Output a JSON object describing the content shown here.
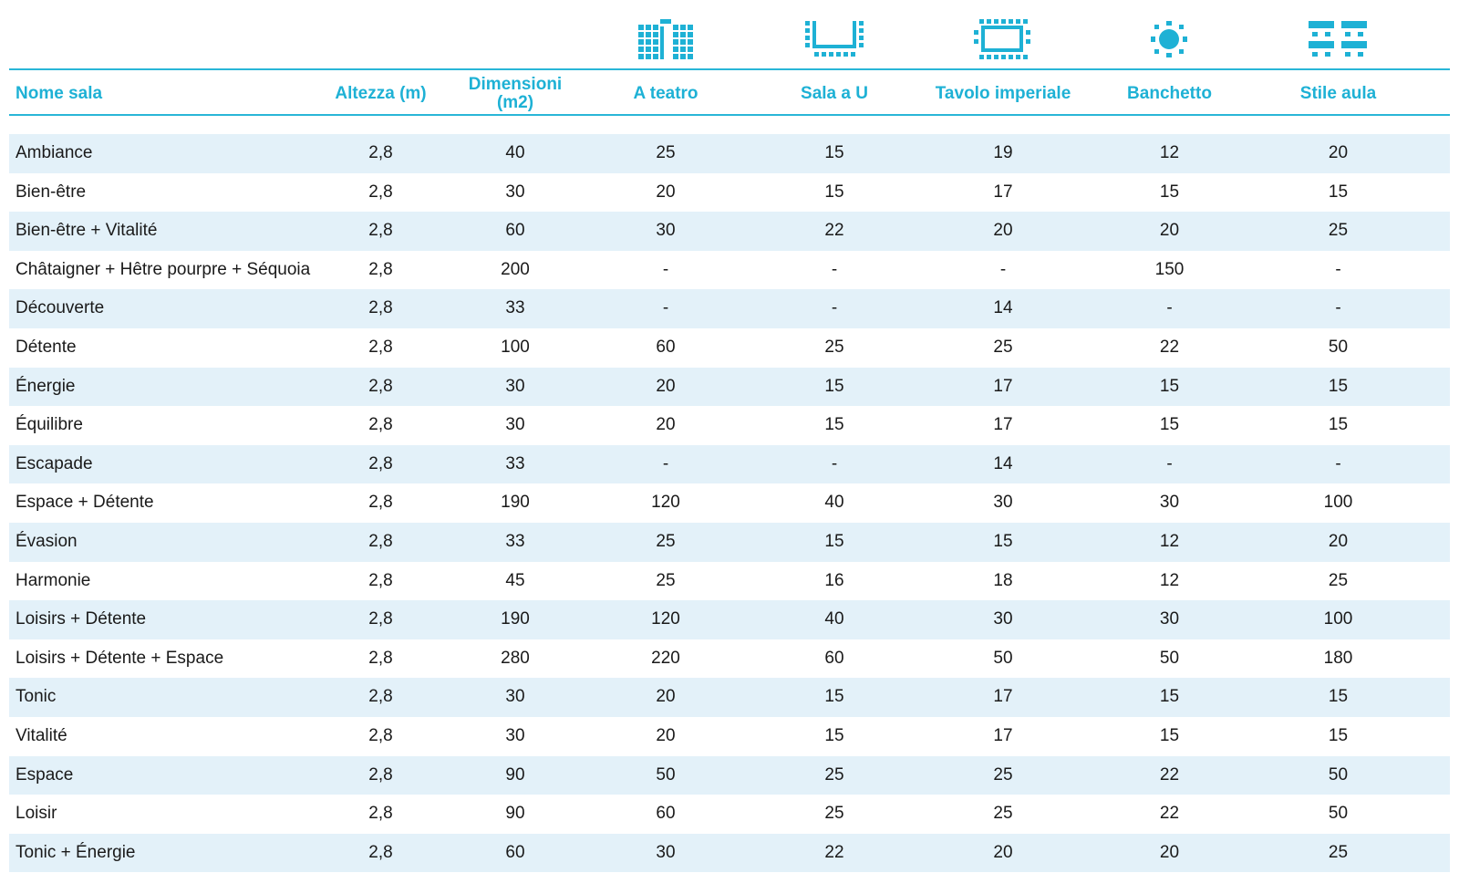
{
  "colors": {
    "accent": "#1eb1d5",
    "row_shade": "#e3f1f9",
    "text": "#1a1a1a"
  },
  "header": {
    "columns": [
      "Nome sala",
      "Altezza (m)",
      "Dimensioni\n(m2)",
      "A teatro",
      "Sala a U",
      "Tavolo imperiale",
      "Banchetto",
      "Stile aula"
    ],
    "icons": [
      "theatre-layout-icon",
      "u-shape-layout-icon",
      "boardroom-layout-icon",
      "banquet-layout-icon",
      "classroom-layout-icon"
    ]
  },
  "rows": [
    [
      "Ambiance",
      "2,8",
      "40",
      "25",
      "15",
      "19",
      "12",
      "20"
    ],
    [
      "Bien-être",
      "2,8",
      "30",
      "20",
      "15",
      "17",
      "15",
      "15"
    ],
    [
      "Bien-être + Vitalité",
      "2,8",
      "60",
      "30",
      "22",
      "20",
      "20",
      "25"
    ],
    [
      "Châtaigner + Hêtre pourpre + Séquoia",
      "2,8",
      "200",
      "-",
      "-",
      "-",
      "150",
      "-"
    ],
    [
      "Découverte",
      "2,8",
      "33",
      "-",
      "-",
      "14",
      "-",
      "-"
    ],
    [
      "Détente",
      "2,8",
      "100",
      "60",
      "25",
      "25",
      "22",
      "50"
    ],
    [
      "Énergie",
      "2,8",
      "30",
      "20",
      "15",
      "17",
      "15",
      "15"
    ],
    [
      "Équilibre",
      "2,8",
      "30",
      "20",
      "15",
      "17",
      "15",
      "15"
    ],
    [
      "Escapade",
      "2,8",
      "33",
      "-",
      "-",
      "14",
      "-",
      "-"
    ],
    [
      "Espace + Détente",
      "2,8",
      "190",
      "120",
      "40",
      "30",
      "30",
      "100"
    ],
    [
      "Évasion",
      "2,8",
      "33",
      "25",
      "15",
      "15",
      "12",
      "20"
    ],
    [
      "Harmonie",
      "2,8",
      "45",
      "25",
      "16",
      "18",
      "12",
      "25"
    ],
    [
      "Loisirs + Détente",
      "2,8",
      "190",
      "120",
      "40",
      "30",
      "30",
      "100"
    ],
    [
      "Loisirs + Détente + Espace",
      "2,8",
      "280",
      "220",
      "60",
      "50",
      "50",
      "180"
    ],
    [
      "Tonic",
      "2,8",
      "30",
      "20",
      "15",
      "17",
      "15",
      "15"
    ],
    [
      "Vitalité",
      "2,8",
      "30",
      "20",
      "15",
      "17",
      "15",
      "15"
    ],
    [
      "Espace",
      "2,8",
      "90",
      "50",
      "25",
      "25",
      "22",
      "50"
    ],
    [
      "Loisir",
      "2,8",
      "90",
      "60",
      "25",
      "25",
      "22",
      "50"
    ],
    [
      "Tonic + Énergie",
      "2,8",
      "60",
      "30",
      "22",
      "20",
      "20",
      "25"
    ]
  ]
}
